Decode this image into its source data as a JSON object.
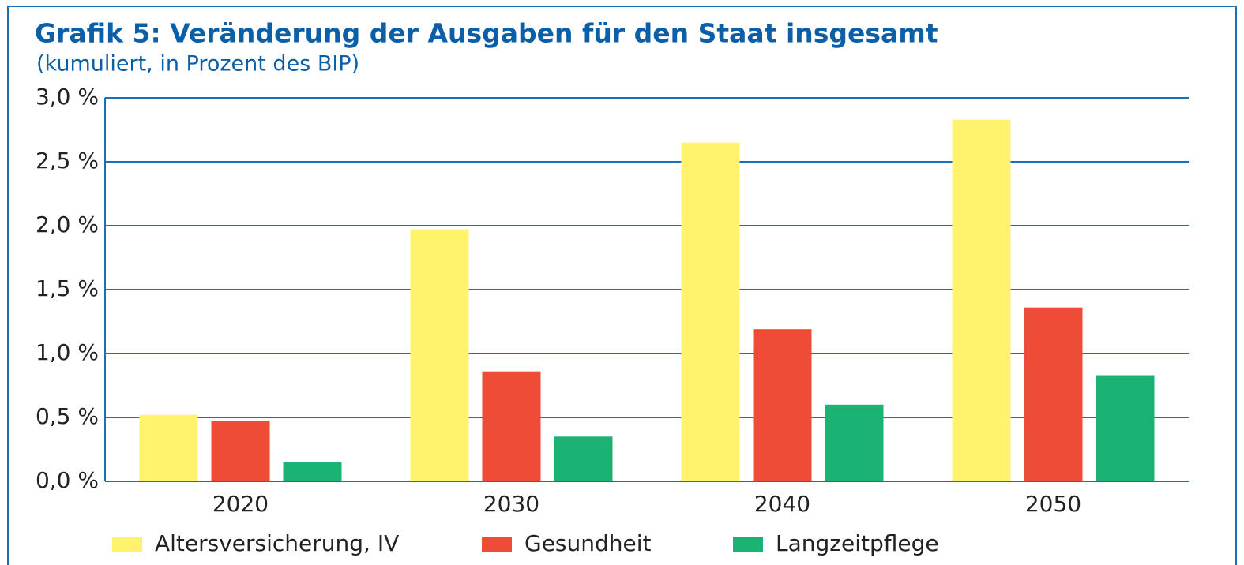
{
  "chart_data": {
    "type": "bar",
    "title": "Grafik 5: Veränderung der Ausgaben für den Staat insgesamt",
    "subtitle": "(kumuliert, in Prozent des BIP)",
    "categories": [
      "2020",
      "2030",
      "2040",
      "2050"
    ],
    "series": [
      {
        "name": "Altersversicherung, IV",
        "color": "#fff36e",
        "values": [
          0.52,
          1.97,
          2.65,
          2.83
        ]
      },
      {
        "name": "Gesundheit",
        "color": "#ee4c36",
        "values": [
          0.47,
          0.86,
          1.19,
          1.36
        ]
      },
      {
        "name": "Langzeitpflege",
        "color": "#1bb374",
        "values": [
          0.15,
          0.35,
          0.6,
          0.83
        ]
      }
    ],
    "ylim": [
      0,
      3
    ],
    "yticks": [
      {
        "value": 0,
        "label": "0,0 %"
      },
      {
        "value": 0.5,
        "label": "0,5 %"
      },
      {
        "value": 1,
        "label": "1,0 %"
      },
      {
        "value": 1.5,
        "label": "1,5 %"
      },
      {
        "value": 2,
        "label": "2,0 %"
      },
      {
        "value": 2.5,
        "label": "2,5 %"
      },
      {
        "value": 3,
        "label": "3,0 %"
      }
    ],
    "grid": true,
    "legend": "bottom"
  }
}
